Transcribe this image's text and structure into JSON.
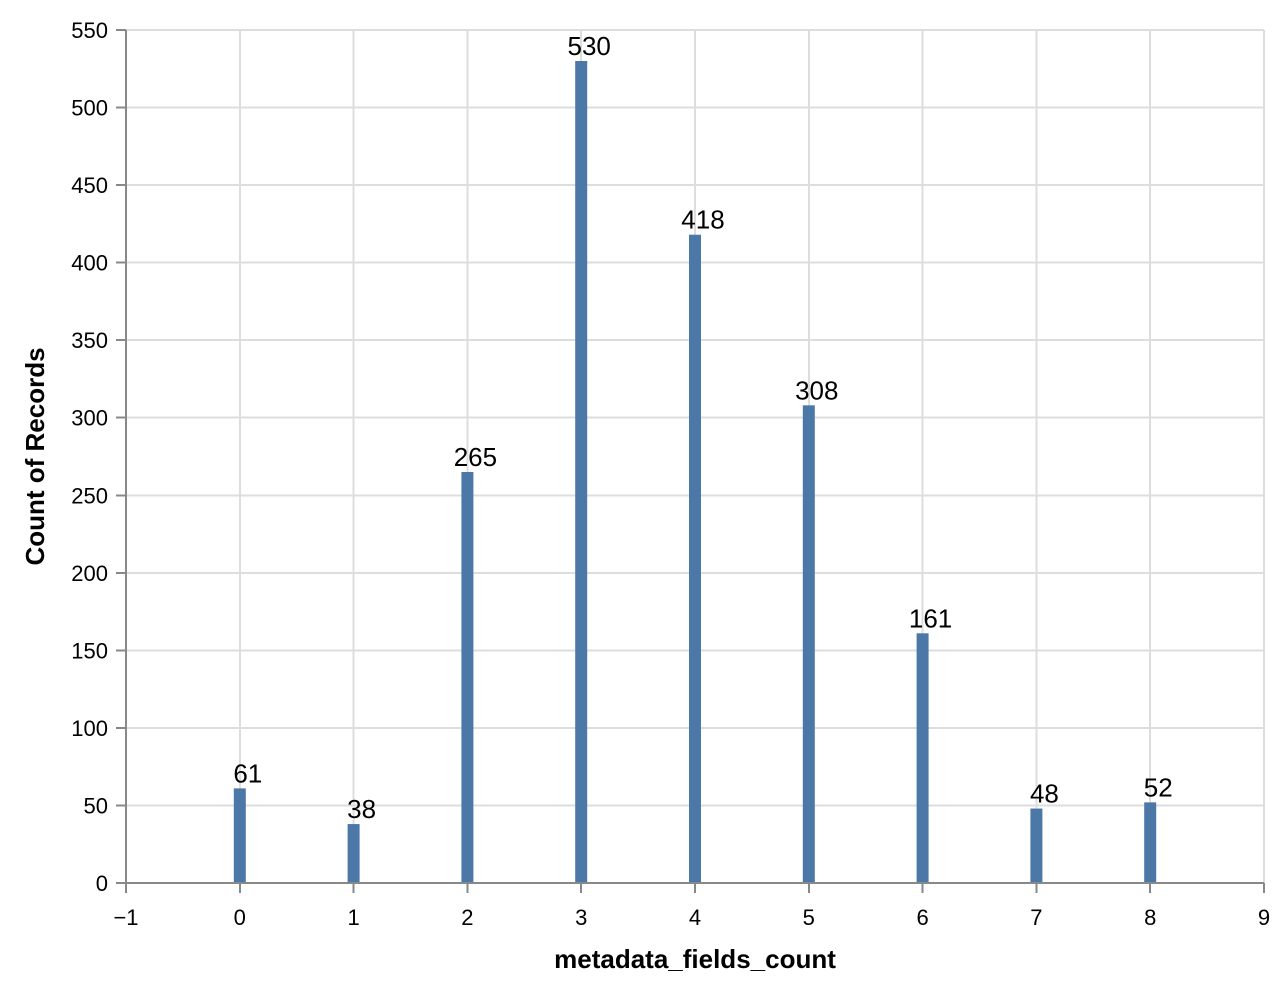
{
  "chart_data": {
    "type": "bar",
    "title": "",
    "xlabel": "metadata_fields_count",
    "ylabel": "Count of Records",
    "x": [
      0,
      1,
      2,
      3,
      4,
      5,
      6,
      7,
      8
    ],
    "values": [
      61,
      38,
      265,
      530,
      418,
      308,
      161,
      48,
      52
    ],
    "xlim": [
      -1,
      9
    ],
    "ylim": [
      0,
      550
    ],
    "x_ticks": [
      "−1",
      "0",
      "1",
      "2",
      "3",
      "4",
      "5",
      "6",
      "7",
      "8",
      "9"
    ],
    "y_ticks": [
      "0",
      "50",
      "100",
      "150",
      "200",
      "250",
      "300",
      "350",
      "400",
      "450",
      "500",
      "550"
    ],
    "grid": true,
    "colors": {
      "bar": "#4c78a8",
      "grid": "#dddddd",
      "axis": "#888888"
    }
  }
}
